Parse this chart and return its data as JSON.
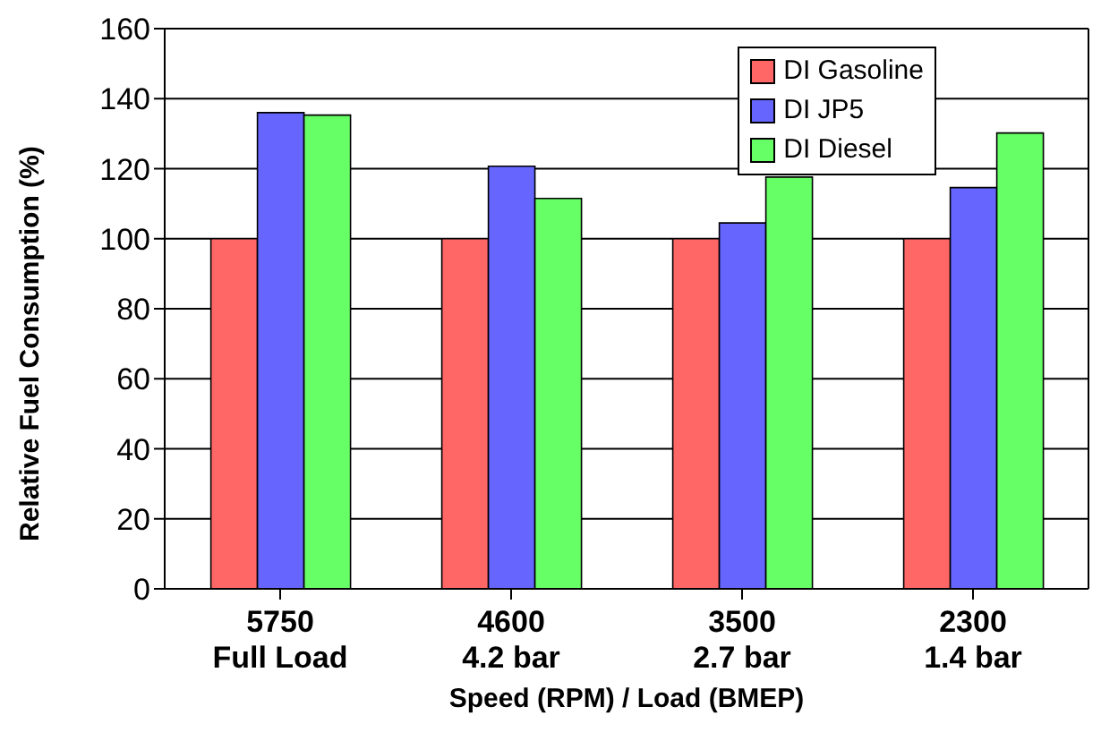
{
  "chart_data": {
    "type": "bar",
    "xlabel": "Speed (RPM) / Load (BMEP)",
    "ylabel": "Relative Fuel Consumption (%)",
    "categories": [
      "5750\nFull Load",
      "4600\n4.2 bar",
      "3500\n2.7 bar",
      "2300\n1.4 bar"
    ],
    "series": [
      {
        "name": "DI Gasoline",
        "color": "#ff6666",
        "values": [
          100,
          100,
          100,
          100
        ]
      },
      {
        "name": "DI JP5",
        "color": "#6666ff",
        "values": [
          136,
          120.7,
          104.5,
          114.6
        ]
      },
      {
        "name": "DI Diesel",
        "color": "#66ff66",
        "values": [
          135.3,
          111.5,
          117.6,
          130.2
        ]
      }
    ],
    "ylim": [
      0,
      160
    ],
    "yticks": [
      0,
      20,
      40,
      60,
      80,
      100,
      120,
      140,
      160
    ],
    "grid": "y",
    "legend": "top right"
  }
}
